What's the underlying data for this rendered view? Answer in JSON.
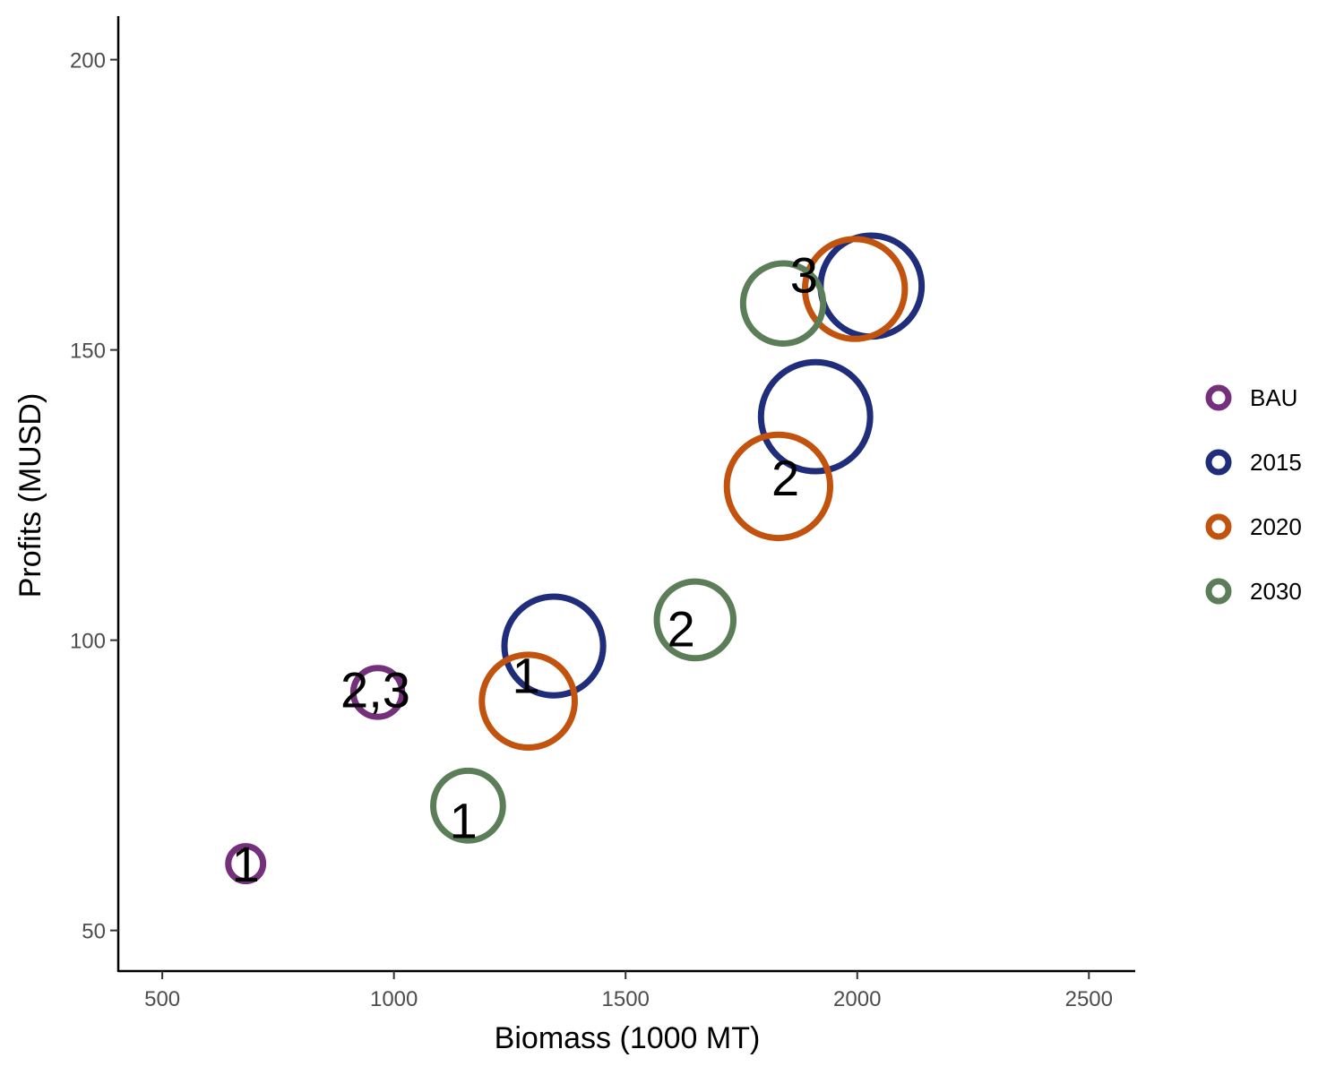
{
  "chart_data": {
    "type": "scatter",
    "title": "",
    "xlabel": "Biomass (1000 MT)",
    "ylabel": "Profits (MUSD)",
    "xlim": [
      405,
      2600
    ],
    "ylim": [
      43,
      207.5
    ],
    "xticks": [
      500,
      1000,
      1500,
      2000,
      2500
    ],
    "yticks": [
      50,
      100,
      150,
      200
    ],
    "grid": false,
    "legend_position": "right",
    "series": [
      {
        "name": "BAU",
        "color": "#74307A",
        "points": [
          {
            "x": 680,
            "y": 61.5,
            "r": 3.0,
            "label": "1"
          },
          {
            "x": 965,
            "y": 91,
            "r": 4.2,
            "label": "2,3"
          }
        ]
      },
      {
        "name": "2015",
        "color": "#1F2D7A",
        "points": [
          {
            "x": 1345,
            "y": 99,
            "r": 8.5,
            "label": ""
          },
          {
            "x": 1910,
            "y": 138.5,
            "r": 9.4,
            "label": ""
          },
          {
            "x": 2030,
            "y": 161,
            "r": 8.7,
            "label": ""
          }
        ]
      },
      {
        "name": "2020",
        "color": "#C2530F",
        "points": [
          {
            "x": 1290,
            "y": 89.5,
            "r": 8.0,
            "label": ""
          },
          {
            "x": 1830,
            "y": 126.5,
            "r": 8.9,
            "label": ""
          },
          {
            "x": 1995,
            "y": 160.5,
            "r": 8.6,
            "label": ""
          }
        ]
      },
      {
        "name": "2030",
        "color": "#5B7E58",
        "points": [
          {
            "x": 1160,
            "y": 71.5,
            "r": 6.0,
            "label": ""
          },
          {
            "x": 1650,
            "y": 103.5,
            "r": 6.6,
            "label": ""
          },
          {
            "x": 1840,
            "y": 158,
            "r": 6.9,
            "label": ""
          }
        ]
      }
    ],
    "annotations": [
      {
        "text": "1",
        "x": 680,
        "y": 61.5
      },
      {
        "text": "2,3",
        "x": 960,
        "y": 91.5
      },
      {
        "text": "1",
        "x": 1150,
        "y": 69
      },
      {
        "text": "1",
        "x": 1285,
        "y": 94
      },
      {
        "text": "2",
        "x": 1620,
        "y": 102
      },
      {
        "text": "2",
        "x": 1845,
        "y": 128
      },
      {
        "text": "3",
        "x": 1885,
        "y": 163
      }
    ]
  }
}
